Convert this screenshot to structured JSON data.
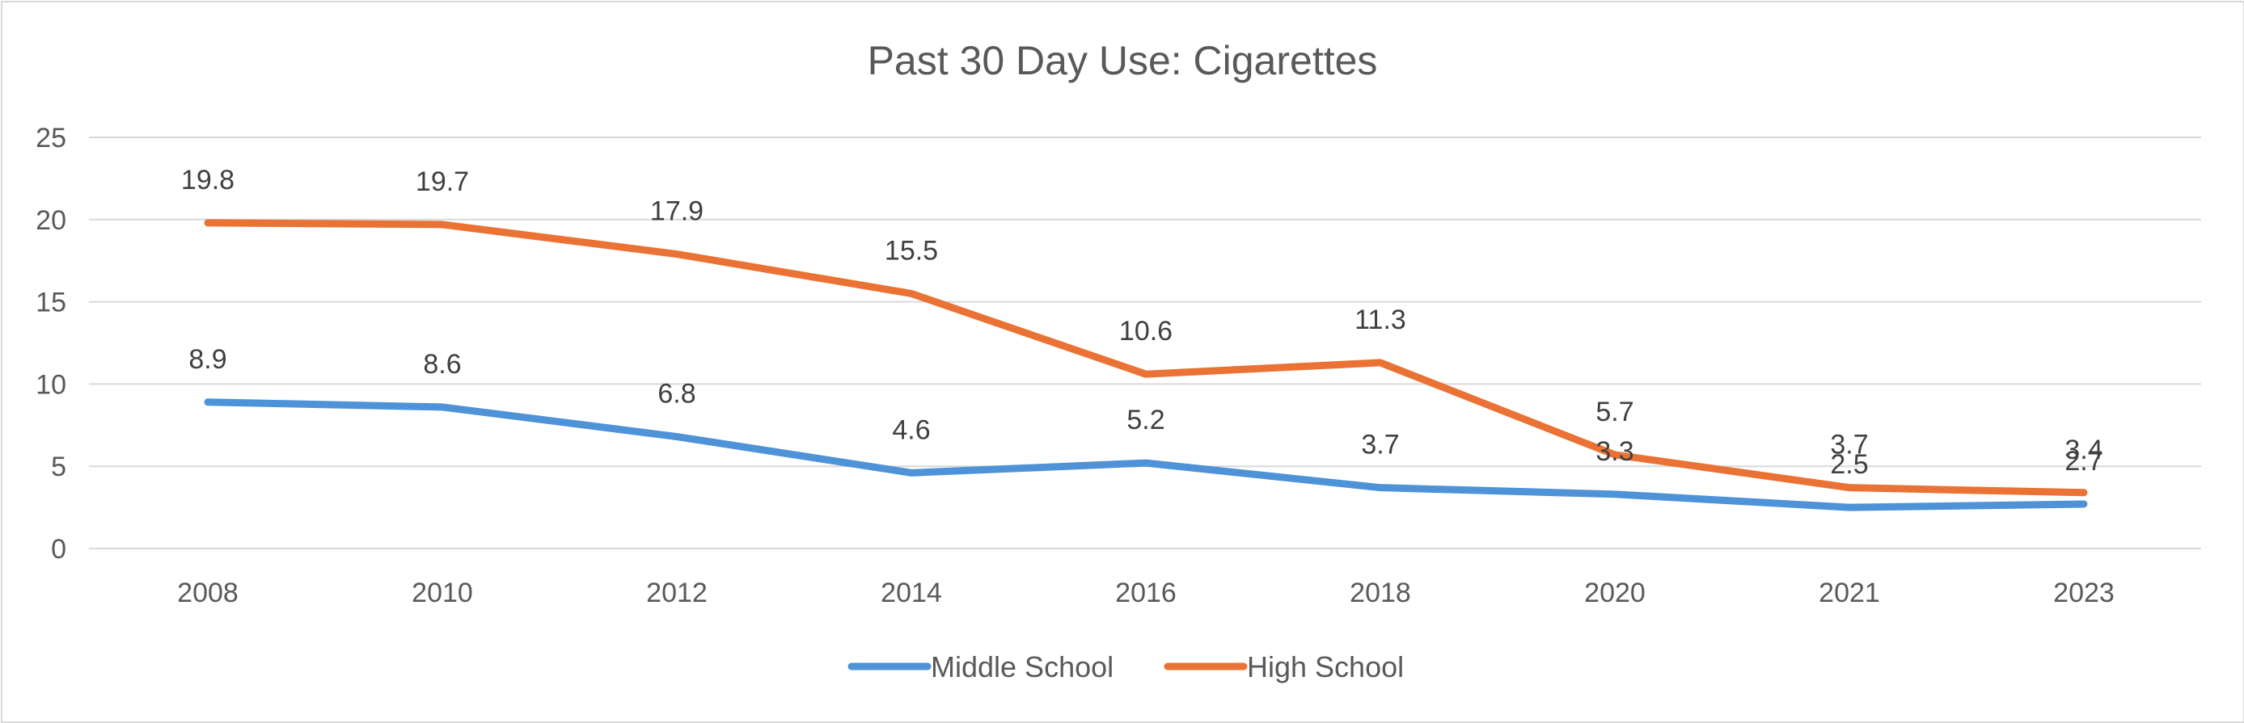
{
  "chart_data": {
    "type": "line",
    "title": "Past 30 Day Use: Cigarettes",
    "xlabel": "",
    "ylabel": "",
    "categories": [
      "2008",
      "2010",
      "2012",
      "2014",
      "2016",
      "2018",
      "2020",
      "2021",
      "2023"
    ],
    "ylim": [
      0,
      25
    ],
    "yticks": [
      0,
      5,
      10,
      15,
      20,
      25
    ],
    "grid": true,
    "legend": "bottom",
    "series": [
      {
        "name": "Middle School",
        "color": "#4e92d8",
        "values": [
          8.9,
          8.6,
          6.8,
          4.6,
          5.2,
          3.7,
          3.3,
          2.5,
          2.7
        ],
        "labels": [
          "8.9",
          "8.6",
          "6.8",
          "4.6",
          "5.2",
          "3.7",
          "3.3",
          "2.5",
          "2.7"
        ]
      },
      {
        "name": "High School",
        "color": "#ea7234",
        "values": [
          19.8,
          19.7,
          17.9,
          15.5,
          10.6,
          11.3,
          5.7,
          3.7,
          3.4
        ],
        "labels": [
          "19.8",
          "19.7",
          "17.9",
          "15.5",
          "10.6",
          "11.3",
          "5.7",
          "3.7",
          "3.4"
        ]
      }
    ]
  }
}
